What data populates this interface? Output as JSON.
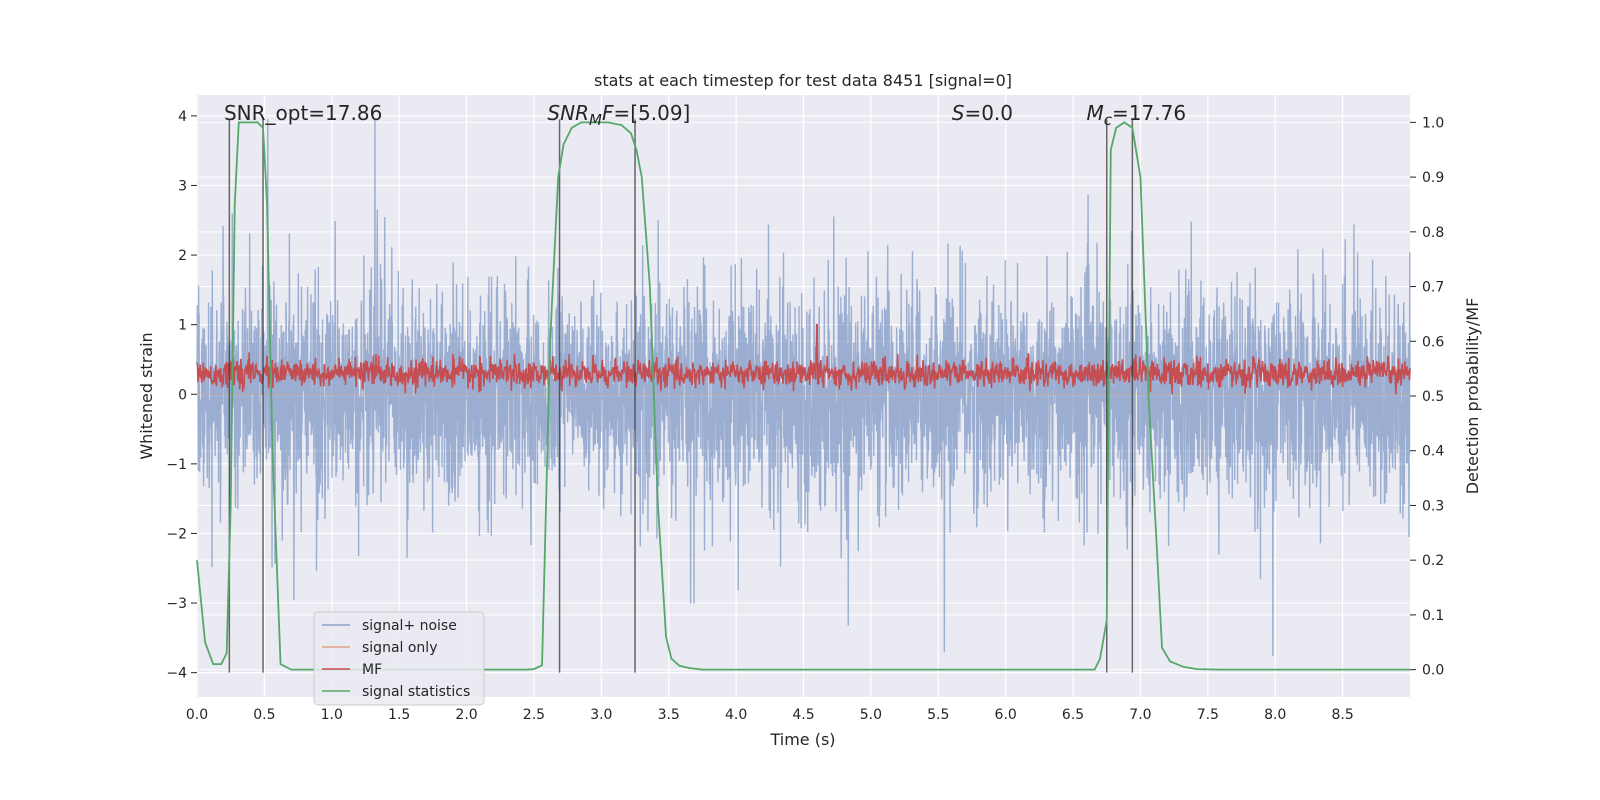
{
  "chart_data": {
    "type": "line",
    "title": "stats at each timestep for test data 8451 [signal=0]",
    "xlabel": "Time (s)",
    "ylabel": "Whitened strain",
    "ylabel_right": "Detection probability/MF",
    "xlim": [
      0,
      9.0
    ],
    "ylim": [
      -4.35,
      4.3
    ],
    "ylim_right": [
      -0.05,
      1.05
    ],
    "x_ticks": [
      0.0,
      0.5,
      1.0,
      1.5,
      2.0,
      2.5,
      3.0,
      3.5,
      4.0,
      4.5,
      5.0,
      5.5,
      6.0,
      6.5,
      7.0,
      7.5,
      8.0,
      8.5
    ],
    "x_tick_labels": [
      "0.0",
      "0.5",
      "1.0",
      "1.5",
      "2.0",
      "2.5",
      "3.0",
      "3.5",
      "4.0",
      "4.5",
      "5.0",
      "5.5",
      "6.0",
      "6.5",
      "7.0",
      "7.5",
      "8.0",
      "8.5"
    ],
    "y_ticks": [
      -4,
      -3,
      -2,
      -1,
      0,
      1,
      2,
      3,
      4
    ],
    "y_tick_labels": [
      "−4",
      "−3",
      "−2",
      "−1",
      "0",
      "1",
      "2",
      "3",
      "4"
    ],
    "y_right_ticks": [
      0.0,
      0.1,
      0.2,
      0.3,
      0.4,
      0.5,
      0.6,
      0.7,
      0.8,
      0.9,
      1.0
    ],
    "y_right_tick_labels": [
      "0.0",
      "0.1",
      "0.2",
      "0.3",
      "0.4",
      "0.5",
      "0.6",
      "0.7",
      "0.8",
      "0.9",
      "1.0"
    ],
    "grid": true,
    "annotations": {
      "snr_opt": "SNR_opt=17.86",
      "snr_mf_sym": "SNR",
      "snr_mf_sub": "M",
      "snr_mf_f": "F",
      "snr_mf_val": "=[5.09]",
      "s_sym": "S",
      "s_val": "=0.0",
      "mc_sym": "M",
      "mc_sub": "c",
      "mc_val": "=17.76"
    },
    "annotation_x": [
      0.2,
      2.6,
      5.6,
      6.6
    ],
    "annotation_y": 4.0,
    "vertical_lines_x": [
      0.24,
      0.49,
      2.69,
      3.25,
      6.75,
      6.94
    ],
    "legend": {
      "position": "lower-left",
      "entries": [
        "signal+ noise",
        "signal only",
        "MF",
        "signal statistics"
      ]
    },
    "series": [
      {
        "name": "signal+ noise",
        "color": "#4c72b0",
        "alpha": 0.5,
        "style": "dense-noise",
        "sample_rate": 512,
        "envelope_upper_typ": 1.6,
        "envelope_lower_typ": -1.6,
        "peak_max": 3.95,
        "peak_min": -4.0
      },
      {
        "name": "signal only",
        "color": "#dd8452",
        "values_constant": 0.0
      },
      {
        "name": "MF",
        "color": "#c44e52",
        "style": "dense-noise",
        "baseline": 0.3,
        "envelope_upper_typ": 0.55,
        "envelope_lower_typ": 0.05,
        "spike_x": 4.6,
        "spike_y": 1.0
      },
      {
        "name": "signal statistics",
        "color": "#55a868",
        "axis": "right",
        "x": [
          0.0,
          0.06,
          0.12,
          0.18,
          0.22,
          0.25,
          0.28,
          0.31,
          0.35,
          0.45,
          0.49,
          0.52,
          0.56,
          0.62,
          0.7,
          1.0,
          1.5,
          2.0,
          2.3,
          2.44,
          2.5,
          2.56,
          2.62,
          2.68,
          2.72,
          2.78,
          2.85,
          2.95,
          3.05,
          3.15,
          3.22,
          3.26,
          3.3,
          3.36,
          3.42,
          3.48,
          3.52,
          3.58,
          3.65,
          3.75,
          4.0,
          5.0,
          6.0,
          6.5,
          6.66,
          6.7,
          6.75,
          6.78,
          6.82,
          6.88,
          6.94,
          7.0,
          7.06,
          7.12,
          7.16,
          7.22,
          7.32,
          7.42,
          7.6,
          8.0,
          8.5,
          9.0
        ],
        "values": [
          0.2,
          0.05,
          0.01,
          0.01,
          0.03,
          0.3,
          0.85,
          1.0,
          1.0,
          1.0,
          0.99,
          0.85,
          0.4,
          0.01,
          0.0,
          0.0,
          0.0,
          0.0,
          0.0,
          0.0,
          0.001,
          0.008,
          0.6,
          0.9,
          0.96,
          0.99,
          1.0,
          1.0,
          1.0,
          0.995,
          0.98,
          0.95,
          0.9,
          0.7,
          0.3,
          0.06,
          0.02,
          0.007,
          0.003,
          0.0,
          0.0,
          0.0,
          0.0,
          0.0,
          0.0,
          0.02,
          0.09,
          0.95,
          0.99,
          1.0,
          0.99,
          0.9,
          0.5,
          0.23,
          0.04,
          0.015,
          0.005,
          0.001,
          0.0,
          0.0,
          0.0,
          0.0
        ]
      }
    ]
  }
}
